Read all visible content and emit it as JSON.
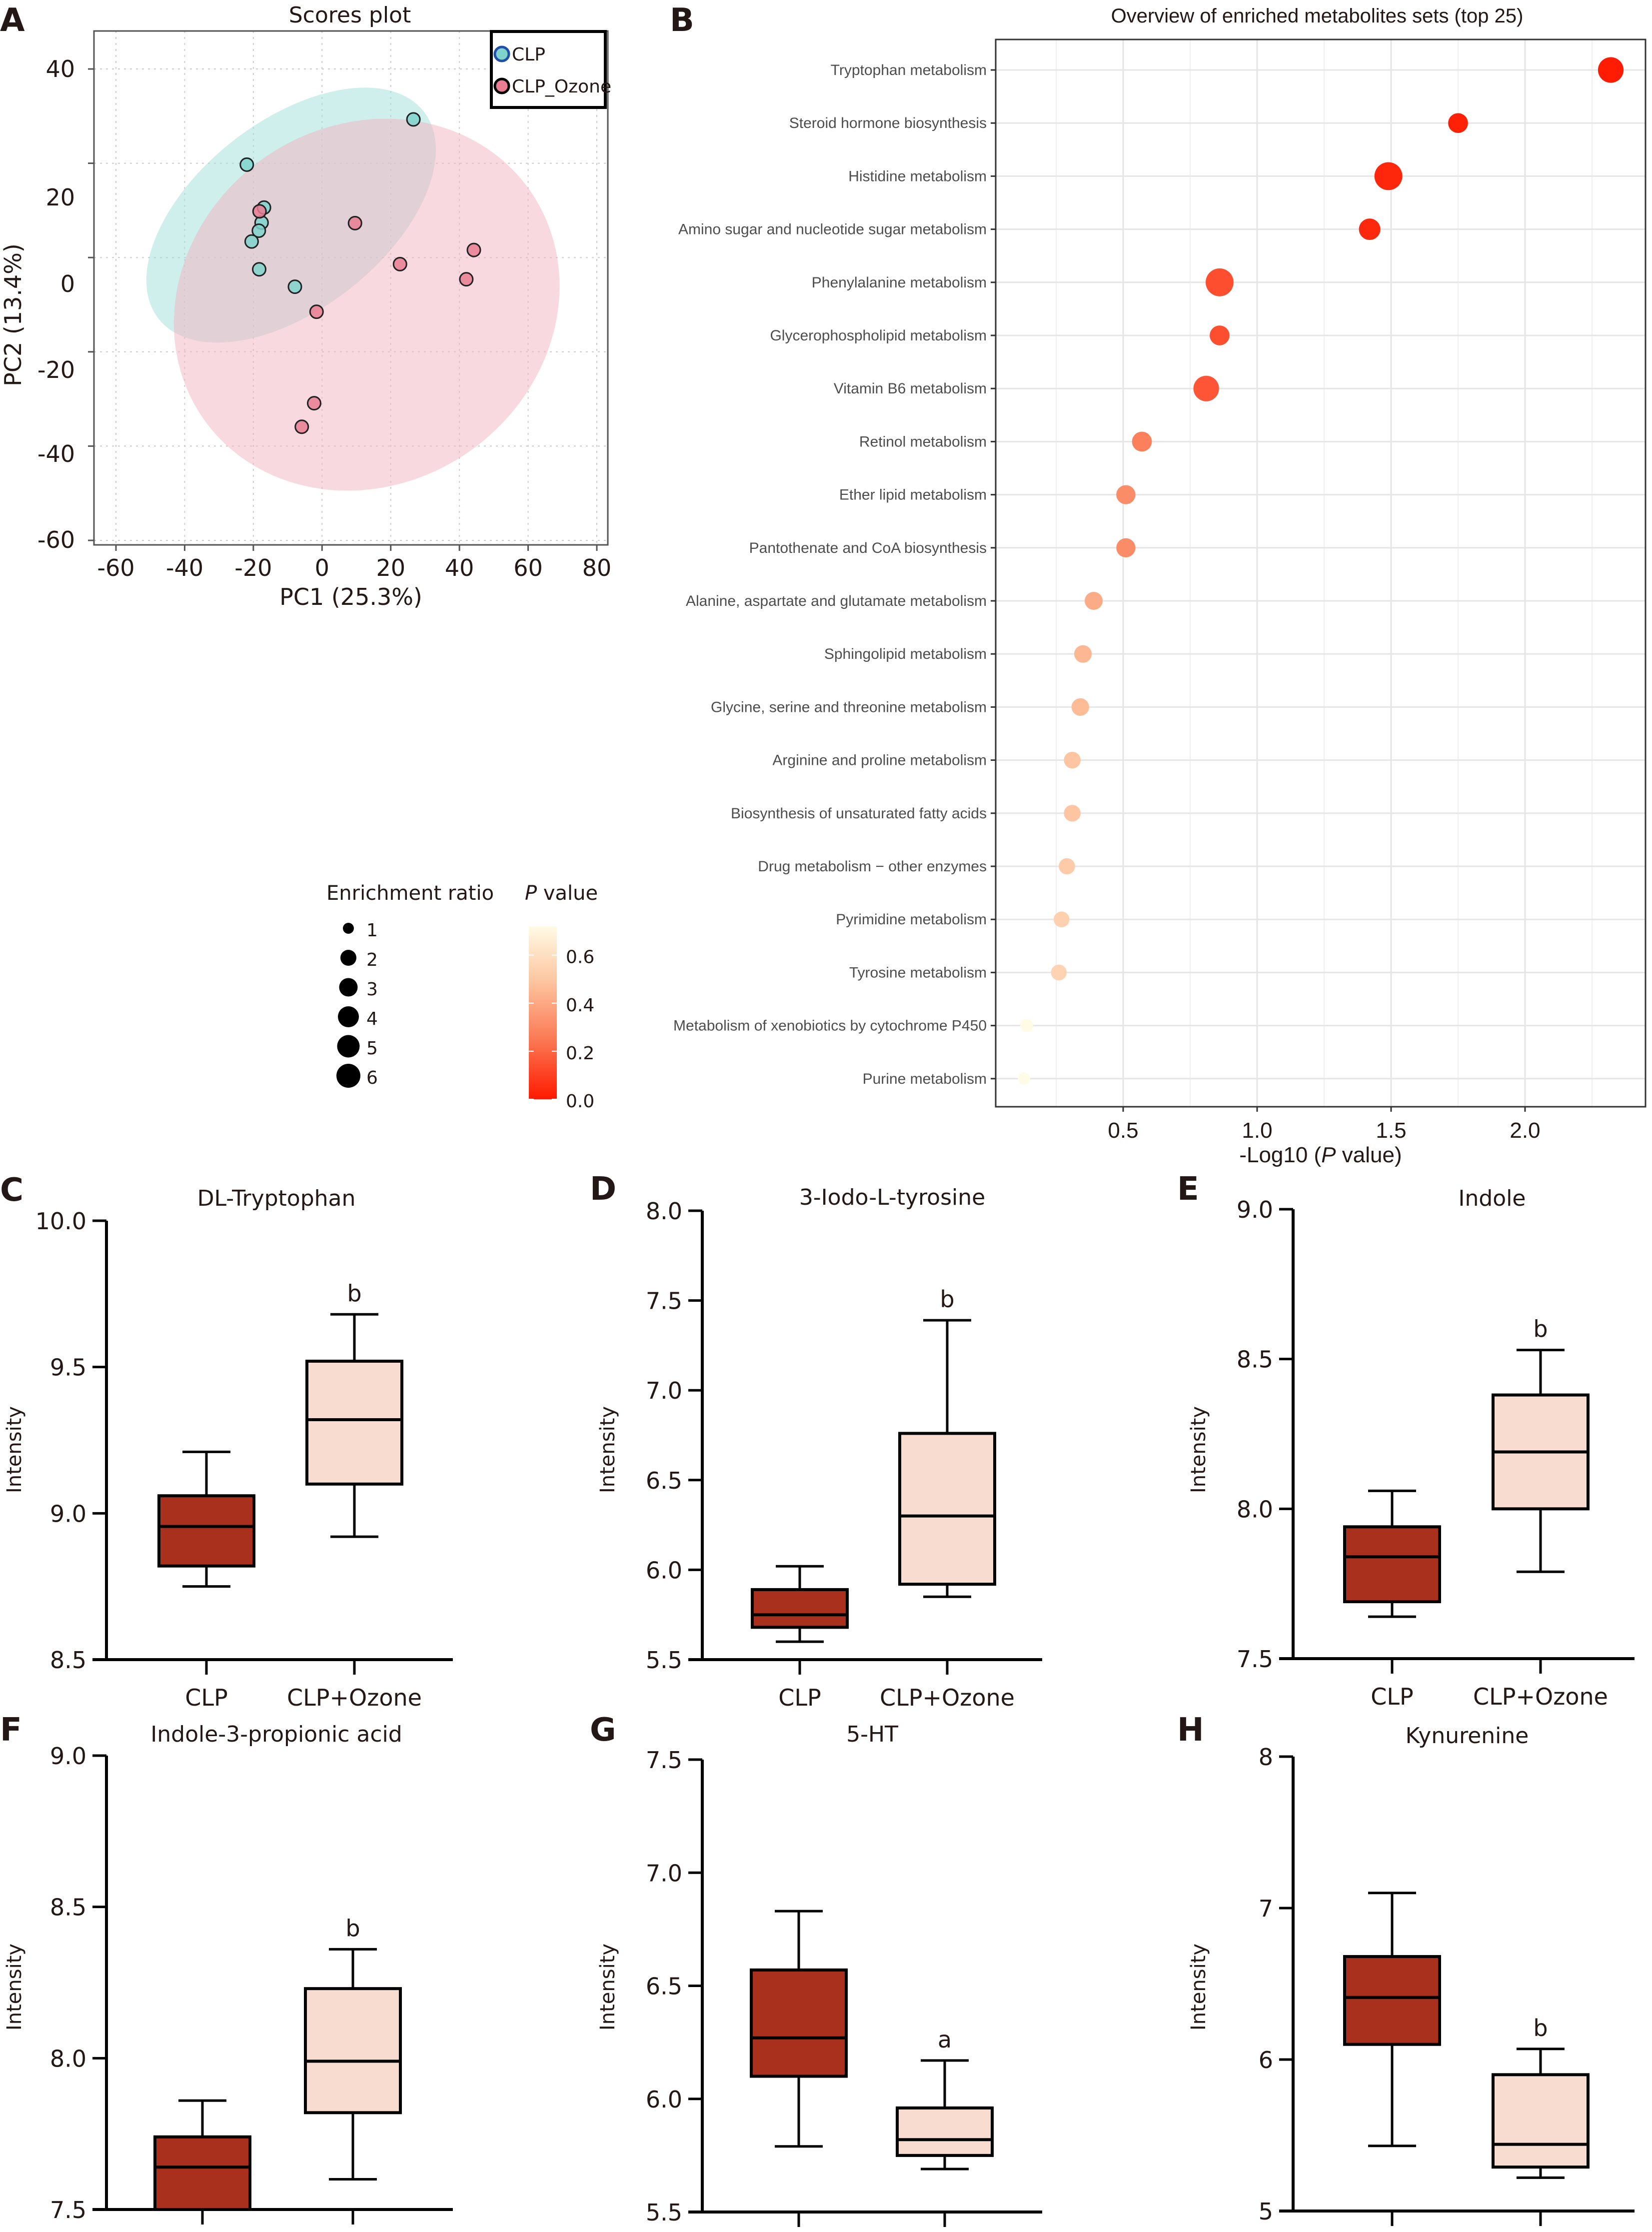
{
  "panels": {
    "A": "A",
    "B": "B",
    "C": "C",
    "D": "D",
    "E": "E",
    "F": "F",
    "G": "G",
    "H": "H"
  },
  "colors": {
    "clp_fill": "#7fd3cc",
    "clp_stroke": "#1f4fa8",
    "ozone_fill": "#e97d92",
    "ozone_stroke": "#000000",
    "clp_ellipse": "#9fe0da",
    "ozone_ellipse": "#f4b3c1",
    "box_clp": "#a8301c",
    "box_ozone": "#f7dccf",
    "pval_high": "#fffbe5",
    "pval_mid": "#fdb08a",
    "pval_low": "#ff0000"
  },
  "chart_data": [
    {
      "id": "A",
      "type": "scatter",
      "title": "Scores plot",
      "xlabel": "PC1 (25.3%)",
      "ylabel": "PC2 (13.4%)",
      "xlim": [
        -68,
        82
      ],
      "ylim": [
        -62,
        48
      ],
      "xticks": [
        -60,
        -40,
        -20,
        0,
        20,
        40,
        60,
        80
      ],
      "xtick_labels": [
        "-60",
        "-40",
        "-20",
        "0",
        "20",
        "40",
        "60",
        "80"
      ],
      "ygrid": [
        40,
        20,
        0,
        -20,
        -40,
        -60
      ],
      "ytick_labels": [
        "40",
        "20",
        "0",
        "-20",
        "-40",
        "-60"
      ],
      "grid": true,
      "legend_position": "top-right",
      "series": [
        {
          "name": "CLP",
          "points": [
            [
              26.6,
              29.3
            ],
            [
              -21.9,
              19.7
            ],
            [
              -16.9,
              10.6
            ],
            [
              -17.6,
              7.4
            ],
            [
              -18.4,
              5.7
            ],
            [
              -20.5,
              3.4
            ],
            [
              -18.3,
              -2.5
            ],
            [
              -7.9,
              -6.2
            ]
          ],
          "ellipse": {
            "cx": -9,
            "cy": 9,
            "rx": 49,
            "ry": 20,
            "angle_deg": -38
          }
        },
        {
          "name": "CLP_Ozone",
          "points": [
            [
              -18.2,
              9.8
            ],
            [
              9.6,
              7.3
            ],
            [
              44.2,
              1.6
            ],
            [
              22.7,
              -1.4
            ],
            [
              42.0,
              -4.6
            ],
            [
              -1.6,
              -11.5
            ],
            [
              -2.3,
              -30.9
            ],
            [
              -5.9,
              -35.9
            ]
          ],
          "ellipse": {
            "cx": 13,
            "cy": -10,
            "rx": 58,
            "ry": 38,
            "angle_deg": -35
          }
        }
      ]
    },
    {
      "id": "B",
      "type": "scatter",
      "title": "Overview of enriched metabolites sets (top 25)",
      "xlabel_prefix": "-Log10 (",
      "xlabel_italic": "P",
      "xlabel_suffix": " value)",
      "xlim": [
        0.03,
        2.44
      ],
      "xticks": [
        0.5,
        1.0,
        1.5,
        2.0
      ],
      "xtick_labels": [
        "0.5",
        "1.0",
        "1.5",
        "2.0"
      ],
      "grid": true,
      "categories": [
        "Tryptophan metabolism",
        "Steroid hormone biosynthesis",
        "Histidine metabolism",
        "Amino sugar and nucleotide sugar metabolism",
        "Phenylalanine metabolism",
        "Glycerophospholipid metabolism",
        "Vitamin B6 metabolism",
        "Retinol metabolism",
        "Ether lipid metabolism",
        "Pantothenate and CoA biosynthesis",
        "Alanine, aspartate and glutamate metabolism",
        "Sphingolipid metabolism",
        "Glycine, serine and threonine metabolism",
        "Arginine and proline metabolism",
        "Biosynthesis of unsaturated fatty acids",
        "Drug metabolism − other enzymes",
        "Pyrimidine metabolism",
        "Tyrosine metabolism",
        "Metabolism of xenobiotics by cytochrome P450",
        "Purine metabolism"
      ],
      "neg_log10_p": [
        2.32,
        1.75,
        1.49,
        1.42,
        0.86,
        0.86,
        0.81,
        0.57,
        0.51,
        0.51,
        0.39,
        0.35,
        0.34,
        0.31,
        0.31,
        0.29,
        0.27,
        0.26,
        0.14,
        0.13
      ],
      "enrichment_ratio": [
        4.0,
        2.0,
        5.0,
        2.5,
        5.0,
        2.0,
        4.0,
        2.0,
        1.8,
        1.8,
        1.5,
        1.4,
        1.4,
        1.2,
        1.2,
        1.1,
        1.0,
        1.0,
        0.5,
        0.4
      ],
      "size_legend": {
        "title": "Enrichment ratio",
        "values": [
          1,
          2,
          3,
          4,
          5,
          6
        ],
        "labels": [
          "1",
          "2",
          "3",
          "4",
          "5",
          "6"
        ]
      },
      "color_legend": {
        "title_italic": "P",
        "title_rest": " value",
        "range": [
          0.0,
          0.72
        ],
        "ticks": [
          0.6,
          0.4,
          0.2,
          0.0
        ],
        "tick_labels": [
          "0.6",
          "0.4",
          "0.2",
          "0.0"
        ]
      }
    },
    {
      "id": "C",
      "type": "box",
      "title": "DL-Tryptophan",
      "ylabel": "Intensity",
      "ylim": [
        8.5,
        10.0
      ],
      "yticks": [
        8.5,
        9.0,
        9.5,
        10.0
      ],
      "ytick_labels": [
        "8.5",
        "9.0",
        "9.5",
        "10.0"
      ],
      "categories": [
        "CLP",
        "CLP+Ozone"
      ],
      "boxes": [
        {
          "min": 8.75,
          "q1": 8.82,
          "median": 8.955,
          "q3": 9.06,
          "max": 9.21
        },
        {
          "min": 8.92,
          "q1": 9.1,
          "median": 9.32,
          "q3": 9.52,
          "max": 9.68
        }
      ],
      "significance": [
        "",
        "b"
      ]
    },
    {
      "id": "D",
      "type": "box",
      "title": "3-Iodo-L-tyrosine",
      "ylabel": "Intensity",
      "ylim": [
        5.5,
        8.0
      ],
      "yticks": [
        5.5,
        6.0,
        6.5,
        7.0,
        7.5,
        8.0
      ],
      "ytick_labels": [
        "5.5",
        "6.0",
        "6.5",
        "7.0",
        "7.5",
        "8.0"
      ],
      "categories": [
        "CLP",
        "CLP+Ozone"
      ],
      "boxes": [
        {
          "min": 5.6,
          "q1": 5.68,
          "median": 5.75,
          "q3": 5.89,
          "max": 6.02
        },
        {
          "min": 5.85,
          "q1": 5.92,
          "median": 6.3,
          "q3": 6.76,
          "max": 7.39
        }
      ],
      "significance": [
        "",
        "b"
      ]
    },
    {
      "id": "E",
      "type": "box",
      "title": "Indole",
      "ylabel": "Intensity",
      "ylim": [
        7.5,
        9.0
      ],
      "yticks": [
        7.5,
        8.0,
        8.5,
        9.0
      ],
      "ytick_labels": [
        "7.5",
        "8.0",
        "8.5",
        "9.0"
      ],
      "categories": [
        "CLP",
        "CLP+Ozone"
      ],
      "boxes": [
        {
          "min": 7.64,
          "q1": 7.69,
          "median": 7.84,
          "q3": 7.94,
          "max": 8.06
        },
        {
          "min": 7.79,
          "q1": 8.0,
          "median": 8.19,
          "q3": 8.38,
          "max": 8.53
        }
      ],
      "significance": [
        "",
        "b"
      ]
    },
    {
      "id": "F",
      "type": "box",
      "title": "Indole-3-propionic acid",
      "ylabel": "Intensity",
      "ylim": [
        7.5,
        9.0
      ],
      "yticks": [
        7.5,
        8.0,
        8.5,
        9.0
      ],
      "ytick_labels": [
        "7.5",
        "8.0",
        "8.5",
        "9.0"
      ],
      "categories": [
        "CLP",
        "CLP+Ozone"
      ],
      "boxes": [
        {
          "min": 7.45,
          "q1": 7.5,
          "median": 7.64,
          "q3": 7.74,
          "max": 7.86
        },
        {
          "min": 7.6,
          "q1": 7.82,
          "median": 7.99,
          "q3": 8.23,
          "max": 8.36
        }
      ],
      "significance": [
        "",
        "b"
      ]
    },
    {
      "id": "G",
      "type": "box",
      "title": "5-HT",
      "ylabel": "Intensity",
      "ylim": [
        5.5,
        7.5
      ],
      "yticks": [
        5.5,
        6.0,
        6.5,
        7.0,
        7.5
      ],
      "ytick_labels": [
        "5.5",
        "6.0",
        "6.5",
        "7.0",
        "7.5"
      ],
      "categories": [
        "CLP",
        "CLP+Ozone"
      ],
      "boxes": [
        {
          "min": 5.79,
          "q1": 6.1,
          "median": 6.27,
          "q3": 6.57,
          "max": 6.83
        },
        {
          "min": 5.69,
          "q1": 5.75,
          "median": 5.82,
          "q3": 5.96,
          "max": 6.17
        }
      ],
      "significance": [
        "",
        "a"
      ]
    },
    {
      "id": "H",
      "type": "box",
      "title": "Kynurenine",
      "ylabel": "Intensity",
      "ylim": [
        5,
        8
      ],
      "yticks": [
        5,
        6,
        7,
        8
      ],
      "ytick_labels": [
        "5",
        "6",
        "7",
        "8"
      ],
      "categories": [
        "CLP",
        "CLP+Ozone"
      ],
      "boxes": [
        {
          "min": 5.43,
          "q1": 6.1,
          "median": 6.41,
          "q3": 6.68,
          "max": 7.1
        },
        {
          "min": 5.22,
          "q1": 5.29,
          "median": 5.44,
          "q3": 5.9,
          "max": 6.07
        }
      ],
      "significance": [
        "",
        "b"
      ]
    }
  ]
}
